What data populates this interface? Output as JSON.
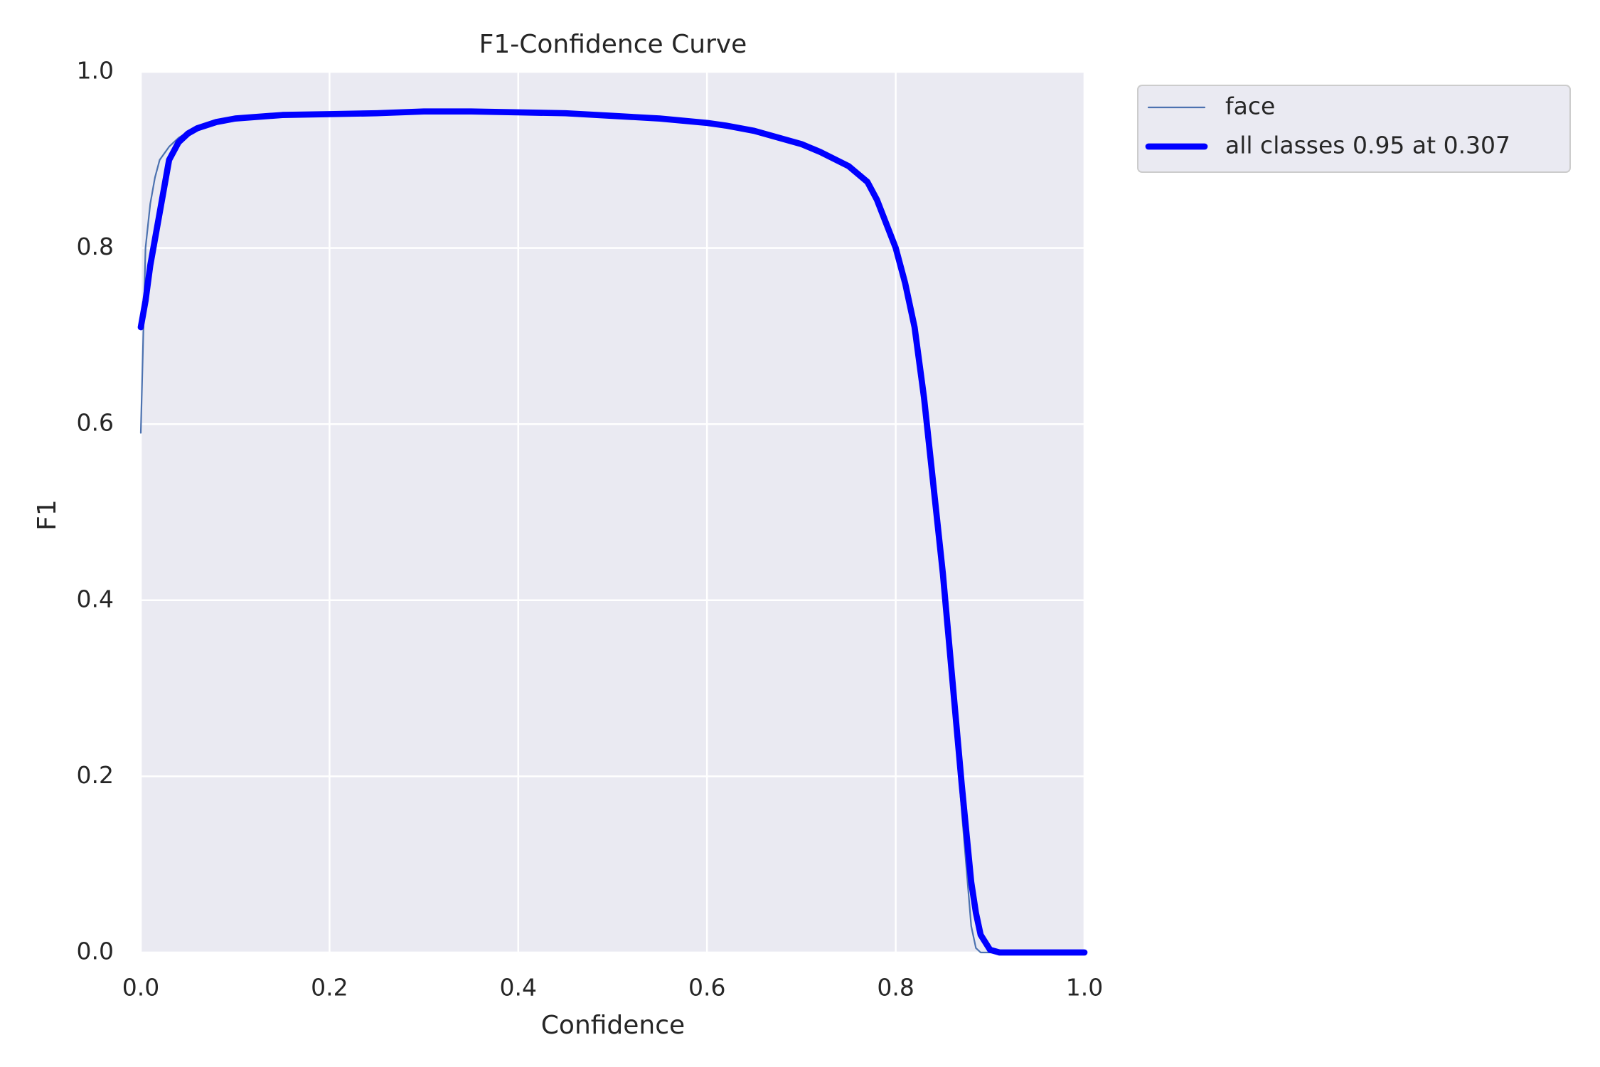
{
  "chart_data": {
    "type": "line",
    "title": "F1-Confidence Curve",
    "xlabel": "Confidence",
    "ylabel": "F1",
    "x": [
      0,
      0.005,
      0.01,
      0.015,
      0.02,
      0.03,
      0.04,
      0.05,
      0.06,
      0.08,
      0.1,
      0.15,
      0.2,
      0.25,
      0.3,
      0.35,
      0.4,
      0.45,
      0.5,
      0.55,
      0.6,
      0.62,
      0.65,
      0.7,
      0.72,
      0.75,
      0.77,
      0.78,
      0.8,
      0.81,
      0.82,
      0.83,
      0.84,
      0.85,
      0.86,
      0.87,
      0.88,
      0.885,
      0.89,
      0.9,
      0.91,
      1.0
    ],
    "series": [
      {
        "name": "face",
        "color": "#4c72b0",
        "width": "thin",
        "values": [
          0.59,
          0.8,
          0.85,
          0.88,
          0.9,
          0.915,
          0.925,
          0.932,
          0.936,
          0.943,
          0.947,
          0.951,
          0.952,
          0.953,
          0.955,
          0.955,
          0.954,
          0.953,
          0.95,
          0.947,
          0.942,
          0.939,
          0.933,
          0.918,
          0.909,
          0.893,
          0.875,
          0.855,
          0.8,
          0.76,
          0.71,
          0.63,
          0.53,
          0.43,
          0.3,
          0.16,
          0.03,
          0.005,
          0,
          0,
          0,
          0
        ]
      },
      {
        "name": "all classes 0.95 at 0.307",
        "color": "#0000ff",
        "width": "thick",
        "values": [
          0.71,
          0.74,
          0.78,
          0.81,
          0.84,
          0.9,
          0.92,
          0.93,
          0.936,
          0.943,
          0.947,
          0.951,
          0.952,
          0.953,
          0.955,
          0.955,
          0.954,
          0.953,
          0.95,
          0.947,
          0.942,
          0.939,
          0.933,
          0.918,
          0.909,
          0.893,
          0.875,
          0.855,
          0.8,
          0.76,
          0.71,
          0.63,
          0.53,
          0.43,
          0.31,
          0.19,
          0.08,
          0.045,
          0.02,
          0.003,
          0,
          0
        ]
      }
    ],
    "xlim": [
      0,
      1.0
    ],
    "ylim": [
      0,
      1.0
    ],
    "xticks": [
      {
        "value": 0,
        "label": "0.0"
      },
      0.2,
      0.4,
      0.6,
      0.8,
      {
        "value": 1,
        "label": "1.0"
      }
    ],
    "yticks": [
      {
        "value": 0,
        "label": "0.0"
      },
      0.2,
      0.4,
      0.6,
      0.8,
      {
        "value": 1,
        "label": "1.0"
      }
    ],
    "grid": true,
    "legend": "outside upper right",
    "background": "#eaeaf2"
  }
}
